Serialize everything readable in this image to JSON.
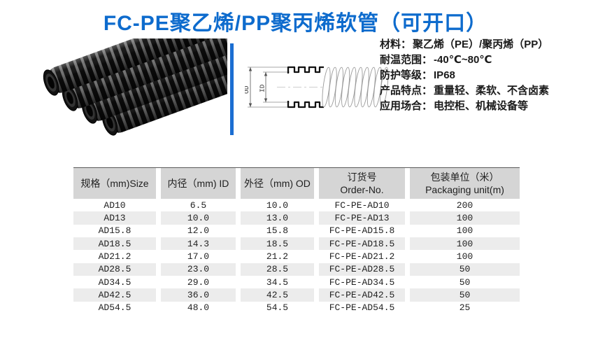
{
  "page": {
    "title": "FC-PE聚乙烯/PP聚丙烯软管（可开口）"
  },
  "colors": {
    "title_blue": "#0d6bcd",
    "divider_blue": "#1b6ed2",
    "header_gray": "#d5d5d5",
    "row_alt_gray": "#ececec"
  },
  "photo": {
    "description": "四根黑色波纹软管产品照片"
  },
  "diagram": {
    "od_label": "OD",
    "id_label": "ID"
  },
  "specs": {
    "items": [
      {
        "label": "材料：",
        "value": "聚乙烯（PE）/聚丙烯（PP）"
      },
      {
        "label": "耐温范围：",
        "value": "-40℃~80℃"
      },
      {
        "label": "防护等级：",
        "value": "IP68"
      },
      {
        "label": "产品特点：",
        "value": "重量轻、柔软、不含卤素"
      },
      {
        "label": "应用场合：",
        "value": "电控柜、机械设备等"
      }
    ]
  },
  "table": {
    "headers": [
      {
        "line1": "规格（mm)Size",
        "line2": ""
      },
      {
        "line1": "内径（mm) ID",
        "line2": ""
      },
      {
        "line1": "外径（mm) OD",
        "line2": ""
      },
      {
        "line1": "订货号",
        "line2": "Order-No."
      },
      {
        "line1": "包装单位（米）",
        "line2": "Packaging unit(m)"
      }
    ],
    "rows": [
      [
        "AD10",
        "6.5",
        "10.0",
        "FC-PE-AD10",
        "200"
      ],
      [
        "AD13",
        "10.0",
        "13.0",
        "FC-PE-AD13",
        "100"
      ],
      [
        "AD15.8",
        "12.0",
        "15.8",
        "FC-PE-AD15.8",
        "100"
      ],
      [
        "AD18.5",
        "14.3",
        "18.5",
        "FC-PE-AD18.5",
        "100"
      ],
      [
        "AD21.2",
        "17.0",
        "21.2",
        "FC-PE-AD21.2",
        "100"
      ],
      [
        "AD28.5",
        "23.0",
        "28.5",
        "FC-PE-AD28.5",
        "50"
      ],
      [
        "AD34.5",
        "29.0",
        "34.5",
        "FC-PE-AD34.5",
        "50"
      ],
      [
        "AD42.5",
        "36.0",
        "42.5",
        "FC-PE-AD42.5",
        "50"
      ],
      [
        "AD54.5",
        "48.0",
        "54.5",
        "FC-PE-AD54.5",
        "25"
      ]
    ]
  }
}
